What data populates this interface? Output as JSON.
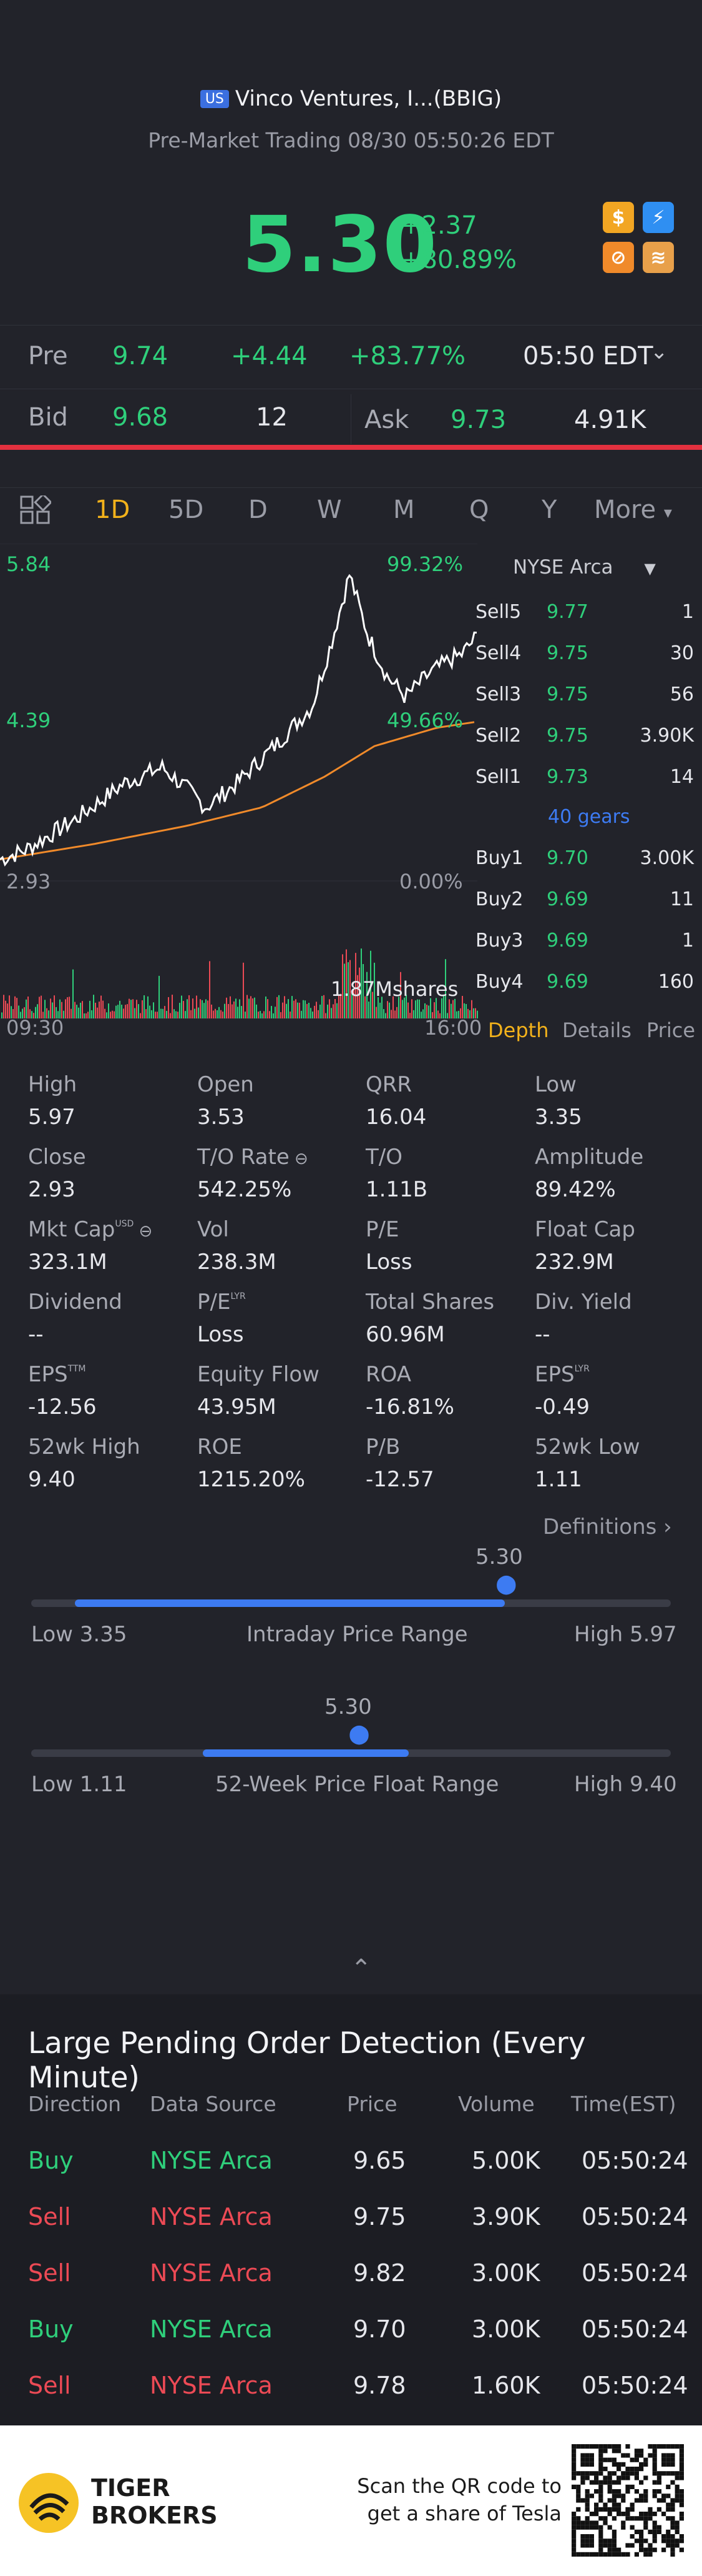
{
  "header": {
    "market_badge": "US",
    "name": "Vinco Ventures, I...(BBIG)",
    "session": "Pre-Market Trading 08/30 05:50:26 EDT",
    "price": "5.30",
    "change": "+2.37",
    "change_pct": "+80.89%"
  },
  "quick_icons": [
    {
      "name": "dollar-icon",
      "color": "#f2a623",
      "glyph": "$"
    },
    {
      "name": "lightning-icon",
      "color": "#2f8ff2",
      "glyph": "⚡"
    },
    {
      "name": "no-entry-icon",
      "color": "#f08a2a",
      "glyph": "⊘"
    },
    {
      "name": "graduation-cap-icon",
      "color": "#e8a04a",
      "glyph": "≋"
    }
  ],
  "pre": {
    "label": "Pre",
    "price": "9.74",
    "change": "+4.44",
    "pct": "+83.77%",
    "time": "05:50 EDT"
  },
  "quote": {
    "bid_label": "Bid",
    "bid": "9.68",
    "bid_size": "12",
    "ask_label": "Ask",
    "ask": "9.73",
    "ask_size": "4.91K"
  },
  "tabs": [
    "1D",
    "5D",
    "D",
    "W",
    "M",
    "Q",
    "Y",
    "More"
  ],
  "active_tab": "1D",
  "chart": {
    "y_high": "5.84",
    "y_mid": "4.39",
    "y_low": "2.93",
    "pct_high": "99.32%",
    "pct_mid": "49.66%",
    "pct_low": "0.00%",
    "volume_label": "1.87Mshares",
    "time_start": "09:30",
    "time_end": "16:00"
  },
  "orderbook": {
    "exchange": "NYSE Arca",
    "gears": "40 gears",
    "sells": [
      {
        "label": "Sell5",
        "price": "9.77",
        "size": "1"
      },
      {
        "label": "Sell4",
        "price": "9.75",
        "size": "30"
      },
      {
        "label": "Sell3",
        "price": "9.75",
        "size": "56"
      },
      {
        "label": "Sell2",
        "price": "9.75",
        "size": "3.90K"
      },
      {
        "label": "Sell1",
        "price": "9.73",
        "size": "14"
      }
    ],
    "buys": [
      {
        "label": "Buy1",
        "price": "9.70",
        "size": "3.00K"
      },
      {
        "label": "Buy2",
        "price": "9.69",
        "size": "11"
      },
      {
        "label": "Buy3",
        "price": "9.69",
        "size": "1"
      },
      {
        "label": "Buy4",
        "price": "9.69",
        "size": "160"
      }
    ],
    "tabs": [
      "Depth",
      "Details",
      "Price"
    ]
  },
  "stats": [
    {
      "label": "High",
      "value": "5.97"
    },
    {
      "label": "Open",
      "value": "3.53"
    },
    {
      "label": "QRR",
      "value": "16.04"
    },
    {
      "label": "Low",
      "value": "3.35"
    },
    {
      "label": "Close",
      "value": "2.93"
    },
    {
      "label": "T/O Rate",
      "value": "542.25%"
    },
    {
      "label": "T/O",
      "value": "1.11B"
    },
    {
      "label": "Amplitude",
      "value": "89.42%"
    },
    {
      "label": "Mkt Cap",
      "value": "323.1M"
    },
    {
      "label": "Vol",
      "value": "238.3M"
    },
    {
      "label": "P/E",
      "value": "Loss"
    },
    {
      "label": "Float Cap",
      "value": "232.9M"
    },
    {
      "label": "Dividend",
      "value": "--"
    },
    {
      "label": "P/E",
      "value": "Loss"
    },
    {
      "label": "Total Shares",
      "value": "60.96M"
    },
    {
      "label": "Div. Yield",
      "value": "--"
    },
    {
      "label": "EPS",
      "value": "-12.56"
    },
    {
      "label": "Equity Flow",
      "value": "43.95M"
    },
    {
      "label": "ROA",
      "value": "-16.81%"
    },
    {
      "label": "EPS",
      "value": "-0.49"
    },
    {
      "label": "52wk High",
      "value": "9.40"
    },
    {
      "label": "ROE",
      "value": "1215.20%"
    },
    {
      "label": "P/B",
      "value": "-12.57"
    },
    {
      "label": "52wk Low",
      "value": "1.11"
    }
  ],
  "stat_sups": {
    "mkt_cap": "USD",
    "pe_lyr": "LYR",
    "eps_ttm": "TTM",
    "eps_lyr": "LYR"
  },
  "definitions": "Definitions",
  "intraday": {
    "marker": "5.30",
    "low": "Low 3.35",
    "title": "Intraday Price Range",
    "high": "High 5.97",
    "position": 0.74
  },
  "week52": {
    "marker": "5.30",
    "low": "Low 1.11",
    "title": "52-Week Price Float Range",
    "high": "High 9.40",
    "position": 0.51
  },
  "large_orders": {
    "title": "Large Pending Order Detection (Every Minute)",
    "headers": [
      "Direction",
      "Data Source",
      "Price",
      "Volume",
      "Time(EST)"
    ],
    "rows": [
      {
        "direction": "Buy",
        "source": "NYSE Arca",
        "price": "9.65",
        "volume": "5.00K",
        "time": "05:50:24"
      },
      {
        "direction": "Sell",
        "source": "NYSE Arca",
        "price": "9.75",
        "volume": "3.90K",
        "time": "05:50:24"
      },
      {
        "direction": "Sell",
        "source": "NYSE Arca",
        "price": "9.82",
        "volume": "3.00K",
        "time": "05:50:24"
      },
      {
        "direction": "Buy",
        "source": "NYSE Arca",
        "price": "9.70",
        "volume": "3.00K",
        "time": "05:50:24"
      },
      {
        "direction": "Sell",
        "source": "NYSE Arca",
        "price": "9.78",
        "volume": "1.60K",
        "time": "05:50:24"
      }
    ]
  },
  "footer": {
    "brand_top": "TIGER",
    "brand_bottom": "BROKERS",
    "scan_line1": "Scan the QR code to",
    "scan_line2": "get a share of Tesla"
  },
  "colors": {
    "up": "#2fcf7b",
    "down": "#ec4a55",
    "accent": "#3d7bf2",
    "active_tab": "#f3b21b",
    "avg_line": "#f08a2a"
  }
}
